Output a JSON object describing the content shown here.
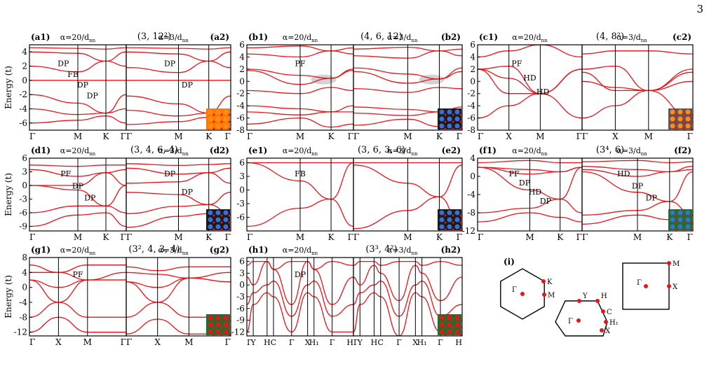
{
  "page_number": "3",
  "colors": {
    "band": "#e8141b",
    "axis": "#000000",
    "shade": "#c8c8c8"
  },
  "row_labels": {
    "energy": "Energy (t)"
  },
  "groups": [
    {
      "id": "a",
      "lattice": "(3, 12²)"
    },
    {
      "id": "b",
      "lattice": "(4, 6, 12)"
    },
    {
      "id": "c",
      "lattice": "(4, 8²)"
    },
    {
      "id": "d",
      "lattice": "(3, 4, 6, 4)"
    },
    {
      "id": "e",
      "lattice": "(3, 6, 3, 6)"
    },
    {
      "id": "f",
      "lattice": "(3⁴, 6)"
    },
    {
      "id": "g",
      "lattice": "(3², 4, 3, 4)"
    },
    {
      "id": "h",
      "lattice": "(3³, 4²)"
    }
  ],
  "alpha_labels": {
    "big": "α=20/d",
    "small": "α=3/d",
    "sub": "nn"
  },
  "chart_data": [
    {
      "id": "a1",
      "label": "(a1)",
      "type": "line",
      "alpha": "big",
      "ylim": [
        -7,
        5
      ],
      "yticks": [
        4,
        2,
        0,
        -2,
        -4,
        -6
      ],
      "kpath": [
        "Γ",
        "M",
        "K",
        "Γ"
      ],
      "kpos": [
        0,
        0.5,
        0.79,
        1
      ],
      "annotations": [
        "DP",
        "FB",
        "DP",
        "DP"
      ],
      "series": [
        {
          "values": [
            4.6,
            4.5,
            4.4,
            4.6
          ]
        },
        {
          "values": [
            4.0,
            3.8,
            2.7,
            4.0
          ]
        },
        {
          "values": [
            2.0,
            1.2,
            2.7,
            2.0
          ]
        },
        {
          "values": [
            0,
            0,
            0,
            0
          ]
        },
        {
          "values": [
            -2.0,
            -3.2,
            -4.6,
            -2.0
          ]
        },
        {
          "values": [
            -4.0,
            -4.8,
            -4.6,
            -4.0
          ]
        },
        {
          "values": [
            -6.0,
            -5.6,
            -5.0,
            -6.0
          ]
        }
      ]
    },
    {
      "id": "a2",
      "label": "(a2)",
      "type": "line",
      "alpha": "small",
      "ylim": [
        -7,
        5
      ],
      "kpath": [
        "Γ",
        "M",
        "K",
        "Γ"
      ],
      "kpos": [
        0,
        0.5,
        0.79,
        1
      ],
      "annotations": [
        "DP",
        "DP"
      ],
      "series": [
        {
          "values": [
            4.6,
            4.5,
            4.4,
            4.6
          ]
        },
        {
          "values": [
            4.0,
            3.7,
            2.7,
            4.0
          ]
        },
        {
          "values": [
            1.8,
            1.1,
            2.7,
            1.8
          ]
        },
        {
          "values": [
            0,
            0,
            0,
            0
          ]
        },
        {
          "values": [
            -2.2,
            -3.3,
            -4.6,
            -2.2
          ]
        },
        {
          "values": [
            -4.2,
            -5.0,
            -4.6,
            -4.2
          ]
        },
        {
          "values": [
            -6.2,
            -5.8,
            -5.2,
            -6.2
          ]
        }
      ]
    },
    {
      "id": "b1",
      "label": "(b1)",
      "type": "line",
      "alpha": "big",
      "ylim": [
        -8,
        6
      ],
      "yticks": [
        6,
        4,
        2,
        0,
        -2,
        -4,
        -6,
        -8
      ],
      "kpath": [
        "Γ",
        "M",
        "K",
        "Γ"
      ],
      "kpos": [
        0,
        0.5,
        0.79,
        1
      ],
      "annotations": [
        "PF"
      ],
      "series": [
        {
          "values": [
            5.5,
            5.8,
            5.0,
            5.5
          ]
        },
        {
          "values": [
            4.5,
            4.0,
            5.0,
            4.5
          ]
        },
        {
          "values": [
            2.0,
            1.0,
            0.5,
            2.0
          ]
        },
        {
          "values": [
            1.8,
            -0.5,
            0.5,
            1.8
          ]
        },
        {
          "values": [
            -1.5,
            -2.0,
            -1.0,
            -1.5
          ]
        },
        {
          "values": [
            -4.0,
            -4.5,
            -5.0,
            -4.0
          ]
        },
        {
          "values": [
            -5.0,
            -5.5,
            -5.0,
            -5.0
          ]
        },
        {
          "values": [
            -7.0,
            -6.0,
            -7.5,
            -7.0
          ]
        }
      ]
    },
    {
      "id": "b2",
      "label": "(b2)",
      "type": "line",
      "alpha": "small",
      "ylim": [
        -8,
        6
      ],
      "kpath": [
        "Γ",
        "M",
        "K",
        "Γ"
      ],
      "kpos": [
        0,
        0.5,
        0.79,
        1
      ],
      "annotations": [],
      "series": [
        {
          "values": [
            5.3,
            5.6,
            5.0,
            5.3
          ]
        },
        {
          "values": [
            4.2,
            3.8,
            5.0,
            4.2
          ]
        },
        {
          "values": [
            2.2,
            1.2,
            0.4,
            2.2
          ]
        },
        {
          "values": [
            1.6,
            -0.3,
            0.4,
            1.6
          ]
        },
        {
          "values": [
            -1.2,
            -1.8,
            -1.0,
            -1.2
          ]
        },
        {
          "values": [
            -4.2,
            -4.6,
            -5.0,
            -4.2
          ]
        },
        {
          "values": [
            -5.2,
            -5.6,
            -5.0,
            -5.2
          ]
        },
        {
          "values": [
            -7.2,
            -6.2,
            -7.4,
            -7.2
          ]
        }
      ]
    },
    {
      "id": "c1",
      "label": "(c1)",
      "type": "line",
      "alpha": "big",
      "ylim": [
        -8,
        6
      ],
      "yticks": [
        6,
        4,
        2,
        0,
        -2,
        -4,
        -6,
        -8
      ],
      "kpath": [
        "Γ",
        "X",
        "M",
        "Γ"
      ],
      "kpos": [
        0,
        0.3,
        0.6,
        1
      ],
      "annotations": [
        "PF",
        "HD",
        "HD"
      ],
      "series": [
        {
          "values": [
            4.0,
            5.0,
            6.0,
            4.0
          ]
        },
        {
          "values": [
            2.0,
            2.5,
            -2.0,
            2.0
          ]
        },
        {
          "values": [
            2.0,
            -2.0,
            -2.0,
            2.0
          ]
        },
        {
          "values": [
            2.0,
            0.5,
            -2.0,
            2.0
          ]
        },
        {
          "values": [
            -6.0,
            -4.0,
            -2.0,
            -6.0
          ]
        }
      ]
    },
    {
      "id": "c2",
      "label": "(c2)",
      "type": "line",
      "alpha": "small",
      "ylim": [
        -8,
        6
      ],
      "kpath": [
        "Γ",
        "X",
        "M",
        "Γ"
      ],
      "kpos": [
        0,
        0.3,
        0.6,
        1
      ],
      "annotations": [],
      "series": [
        {
          "values": [
            4.5,
            5.0,
            5.0,
            4.5
          ]
        },
        {
          "values": [
            2.0,
            2.5,
            -1.5,
            2.0
          ]
        },
        {
          "values": [
            1.5,
            -1.5,
            -1.5,
            1.5
          ]
        },
        {
          "values": [
            0.0,
            -1.0,
            -1.5,
            0.0
          ]
        },
        {
          "values": [
            -6.0,
            -4.0,
            -1.5,
            -6.0
          ]
        }
      ]
    },
    {
      "id": "d1",
      "label": "(d1)",
      "type": "line",
      "alpha": "big",
      "ylim": [
        -10,
        6
      ],
      "yticks": [
        6,
        3,
        0,
        -3,
        -6,
        -9
      ],
      "kpath": [
        "Γ",
        "M",
        "K",
        "Γ"
      ],
      "kpos": [
        0,
        0.5,
        0.79,
        1
      ],
      "annotations": [
        "PF",
        "DP",
        "DP"
      ],
      "series": [
        {
          "values": [
            4.5,
            4.2,
            4.5,
            4.5
          ]
        },
        {
          "values": [
            3.5,
            2.0,
            2.8,
            3.5
          ]
        },
        {
          "values": [
            0,
            0,
            2.8,
            0
          ]
        },
        {
          "values": [
            0,
            -1.0,
            -4.5,
            0
          ]
        },
        {
          "values": [
            -6.0,
            -4.5,
            -4.5,
            -6.0
          ]
        },
        {
          "values": [
            -9.0,
            -6.5,
            -6.0,
            -9.0
          ]
        }
      ]
    },
    {
      "id": "d2",
      "label": "(d2)",
      "type": "line",
      "alpha": "small",
      "ylim": [
        -10,
        6
      ],
      "kpath": [
        "Γ",
        "M",
        "K",
        "Γ"
      ],
      "kpos": [
        0,
        0.5,
        0.79,
        1
      ],
      "annotations": [
        "DP",
        "DP"
      ],
      "series": [
        {
          "values": [
            4.8,
            4.4,
            4.6,
            4.8
          ]
        },
        {
          "values": [
            3.8,
            2.5,
            2.8,
            3.8
          ]
        },
        {
          "values": [
            0.5,
            0.8,
            2.8,
            0.5
          ]
        },
        {
          "values": [
            -1.5,
            -2.0,
            -4.2,
            -1.5
          ]
        },
        {
          "values": [
            -6.2,
            -4.6,
            -4.2,
            -6.2
          ]
        },
        {
          "values": [
            -9.2,
            -6.8,
            -6.2,
            -9.2
          ]
        }
      ]
    },
    {
      "id": "e1",
      "label": "(e1)",
      "type": "line",
      "alpha": "big",
      "ylim": [
        -9,
        7
      ],
      "yticks": [
        6,
        3,
        0,
        -3,
        -6
      ],
      "kpath": [
        "Γ",
        "M",
        "K",
        "Γ"
      ],
      "kpos": [
        0,
        0.5,
        0.79,
        1
      ],
      "annotations": [
        "FB"
      ],
      "series": [
        {
          "values": [
            6,
            6,
            6,
            6
          ]
        },
        {
          "values": [
            6,
            2,
            -2,
            6
          ]
        },
        {
          "values": [
            -8,
            -4,
            -2,
            -8
          ]
        }
      ]
    },
    {
      "id": "e2",
      "label": "(e2)",
      "type": "line",
      "alpha": "small",
      "ylim": [
        -9,
        7
      ],
      "kpath": [
        "Γ",
        "M",
        "K",
        "Γ"
      ],
      "kpos": [
        0,
        0.5,
        0.79,
        1
      ],
      "annotations": [],
      "series": [
        {
          "values": [
            6,
            6,
            6,
            6
          ]
        },
        {
          "values": [
            5.5,
            1.5,
            -1.5,
            5.5
          ]
        },
        {
          "values": [
            -8.5,
            -4.5,
            -1.5,
            -8.5
          ]
        }
      ]
    },
    {
      "id": "f1",
      "label": "(f1)",
      "type": "line",
      "alpha": "big",
      "ylim": [
        -12,
        4
      ],
      "yticks": [
        4,
        0,
        -4,
        -8,
        -12
      ],
      "kpath": [
        "Γ",
        "M",
        "K",
        "Γ"
      ],
      "kpos": [
        0,
        0.5,
        0.79,
        1
      ],
      "annotations": [
        "PF",
        "DP",
        "HD",
        "DP"
      ],
      "series": [
        {
          "values": [
            3.0,
            3.5,
            3.0,
            3.0
          ]
        },
        {
          "values": [
            2.0,
            1.5,
            1.0,
            2.0
          ]
        },
        {
          "values": [
            2.0,
            0.5,
            1.0,
            2.0
          ]
        },
        {
          "values": [
            2.0,
            -3.0,
            -5.0,
            2.0
          ]
        },
        {
          "values": [
            -8.0,
            -7.0,
            -5.0,
            -8.0
          ]
        },
        {
          "values": [
            -10.0,
            -8.0,
            -9.0,
            -10.0
          ]
        }
      ]
    },
    {
      "id": "f2",
      "label": "(f2)",
      "type": "line",
      "alpha": "small",
      "ylim": [
        -12,
        4
      ],
      "kpath": [
        "Γ",
        "M",
        "K",
        "Γ"
      ],
      "kpos": [
        0,
        0.5,
        0.79,
        1
      ],
      "annotations": [
        "HD",
        "DP",
        "DP"
      ],
      "series": [
        {
          "values": [
            3.2,
            3.5,
            3.0,
            3.2
          ]
        },
        {
          "values": [
            2.2,
            1.5,
            1.0,
            2.2
          ]
        },
        {
          "values": [
            1.5,
            0.0,
            1.0,
            1.5
          ]
        },
        {
          "values": [
            1.0,
            -3.5,
            -5.5,
            1.0
          ]
        },
        {
          "values": [
            -8.5,
            -7.5,
            -5.5,
            -8.5
          ]
        },
        {
          "values": [
            -10.5,
            -8.5,
            -9.5,
            -10.5
          ]
        }
      ]
    },
    {
      "id": "g1",
      "label": "(g1)",
      "type": "line",
      "alpha": "big",
      "ylim": [
        -13,
        8
      ],
      "yticks": [
        8,
        4,
        0,
        -4,
        -8,
        -12
      ],
      "kpath": [
        "Γ",
        "X",
        "M",
        "Γ"
      ],
      "kpos": [
        0,
        0.3,
        0.6,
        1
      ],
      "annotations": [
        "PF"
      ],
      "series": [
        {
          "values": [
            6.0,
            4.0,
            6.0,
            6.0
          ]
        },
        {
          "values": [
            4.0,
            4.0,
            2.0,
            4.0
          ]
        },
        {
          "values": [
            2.0,
            0.0,
            2.0,
            2.0
          ]
        },
        {
          "values": [
            2.0,
            -4.0,
            2.0,
            2.0
          ]
        },
        {
          "values": [
            -8.0,
            -4.0,
            -8.0,
            -8.0
          ]
        },
        {
          "values": [
            -12.0,
            -8.0,
            -12.0,
            -12.0
          ]
        }
      ]
    },
    {
      "id": "g2",
      "label": "(g2)",
      "type": "line",
      "alpha": "small",
      "ylim": [
        -13,
        8
      ],
      "kpath": [
        "Γ",
        "X",
        "M",
        "Γ"
      ],
      "kpos": [
        0,
        0.3,
        0.6,
        1
      ],
      "annotations": [],
      "series": [
        {
          "values": [
            5.5,
            4.5,
            5.5,
            5.5
          ]
        },
        {
          "values": [
            4.0,
            3.5,
            2.5,
            4.0
          ]
        },
        {
          "values": [
            1.5,
            0.0,
            2.5,
            1.5
          ]
        },
        {
          "values": [
            1.5,
            -4.0,
            2.5,
            1.5
          ]
        },
        {
          "values": [
            -8.0,
            -4.0,
            -8.0,
            -8.0
          ]
        },
        {
          "values": [
            -12.5,
            -8.5,
            -12.5,
            -12.5
          ]
        }
      ]
    },
    {
      "id": "h1",
      "label": "(h1)",
      "type": "line",
      "alpha": "big",
      "ylim": [
        -13,
        7
      ],
      "yticks": [
        6,
        3,
        0,
        -3,
        -6,
        -9,
        -12
      ],
      "kpath": [
        "Γ",
        "Y",
        "H",
        "C",
        "Γ",
        "X",
        "H₁",
        "Γ",
        "H"
      ],
      "kpos": [
        0,
        0.06,
        0.19,
        0.25,
        0.42,
        0.57,
        0.63,
        0.8,
        1
      ],
      "annotations": [
        "DP"
      ],
      "series": [
        {
          "values": [
            5,
            6,
            6,
            4,
            6,
            6,
            4,
            6,
            5
          ]
        },
        {
          "values": [
            2,
            0,
            6,
            4,
            -5,
            6,
            4,
            -5,
            2
          ]
        },
        {
          "values": [
            -5,
            -2,
            0,
            1,
            -8,
            0,
            1,
            -8,
            -5
          ]
        },
        {
          "values": [
            -12,
            -5,
            -2,
            -3,
            -12,
            -2,
            -3,
            -12,
            -12
          ]
        }
      ]
    },
    {
      "id": "h2",
      "label": "(h2)",
      "type": "line",
      "alpha": "small",
      "ylim": [
        -13,
        7
      ],
      "kpath": [
        "Γ",
        "Y",
        "H",
        "C",
        "Γ",
        "X",
        "H₁",
        "Γ",
        "H"
      ],
      "kpos": [
        0,
        0.06,
        0.19,
        0.25,
        0.42,
        0.57,
        0.63,
        0.8,
        1
      ],
      "annotations": [],
      "series": [
        {
          "values": [
            5,
            6,
            6,
            5,
            6,
            6,
            5,
            6,
            5
          ]
        },
        {
          "values": [
            2,
            0,
            5,
            3,
            -4,
            5,
            3,
            -4,
            2
          ]
        },
        {
          "values": [
            -5,
            -2,
            0,
            1,
            -8,
            0,
            1,
            -8,
            -5
          ]
        },
        {
          "values": [
            -12,
            -5,
            -2,
            -3,
            -13,
            -2,
            -3,
            -12,
            -12
          ]
        }
      ]
    }
  ],
  "bz_panel": {
    "label": "(i)",
    "hexagon": {
      "points": [
        "Γ",
        "K",
        "M"
      ]
    },
    "oblique": {
      "points": [
        "Y",
        "H",
        "C",
        "Γ",
        "H₁",
        "X"
      ]
    },
    "square": {
      "points": [
        "M",
        "Γ",
        "X"
      ]
    }
  }
}
